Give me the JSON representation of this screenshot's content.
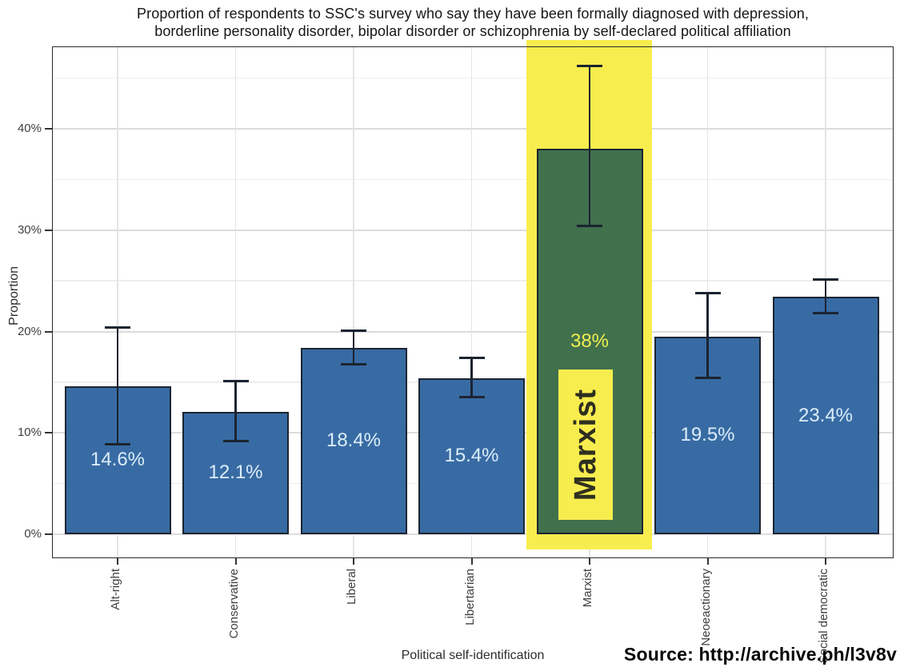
{
  "title": {
    "line1": "Proportion of respondents to SSC's survey who say they have been formally diagnosed with depression,",
    "line2": "borderline personality disorder, bipolar disorder or schizophrenia by self-declared political affiliation"
  },
  "source": "Source: http://archive.ph/l3v8v",
  "chart_data": {
    "type": "bar",
    "title": "Proportion of respondents to SSC's survey who say they have been formally diagnosed with depression, borderline personality disorder, bipolar disorder or schizophrenia by self-declared political affiliation",
    "xlabel": "Political self-identification",
    "ylabel": "Proportion",
    "ylim": [
      -2.4,
      48.1
    ],
    "ytick_values": [
      0,
      10,
      20,
      30,
      40
    ],
    "ytick_labels": [
      "0%",
      "10%",
      "20%",
      "30%",
      "40%"
    ],
    "minor_gridlines": [
      5,
      15,
      25,
      35,
      45
    ],
    "grid": "on",
    "legend": "none",
    "categories": [
      "Alt-right",
      "Conservative",
      "Liberal",
      "Libertarian",
      "Marxist",
      "Neoeactionary",
      "Social democratic"
    ],
    "values": [
      14.6,
      12.1,
      18.4,
      15.4,
      38,
      19.5,
      23.4
    ],
    "value_labels": [
      "14.6%",
      "12.1%",
      "18.4%",
      "15.4%",
      "38%",
      "19.5%",
      "23.4%"
    ],
    "error_low": [
      8.9,
      9.2,
      16.8,
      13.5,
      30.4,
      15.4,
      21.8
    ],
    "error_high": [
      20.4,
      15.1,
      20.1,
      17.4,
      46.2,
      23.8,
      25.1
    ],
    "highlight": {
      "category": "Marxist",
      "category_index": 4,
      "annotation_text": "Marxist"
    },
    "colors": {
      "bar_fill": "#386ba4",
      "bar_edge": "#1b2531",
      "bar_label": "#dcedf9",
      "highlight_bar_fill": "#41704d",
      "highlight_band": "#f8ed4e",
      "highlight_value_label": "#f0ee50",
      "annotation_text": "#2f2f20",
      "error_bar": "#1b2430",
      "grid_major": "#dcdcdc",
      "grid_minor": "#eeeeee",
      "grid_vertical": "#e4e4e4"
    }
  }
}
